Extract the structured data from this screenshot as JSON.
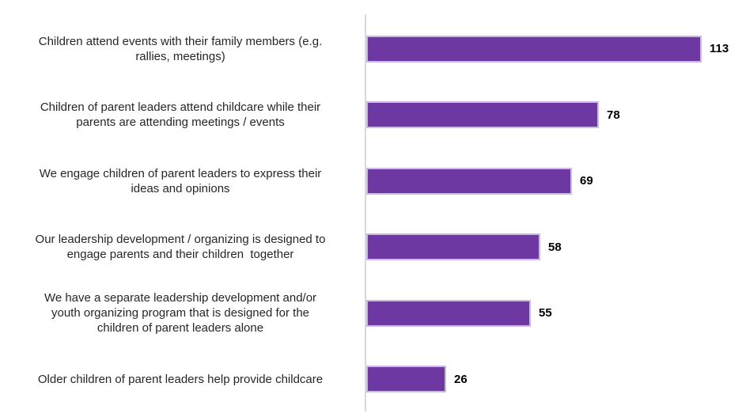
{
  "chart_data": {
    "type": "bar",
    "orientation": "horizontal",
    "title": "",
    "xlabel": "",
    "ylabel": "",
    "categories": [
      "Children attend events with their family members (e.g. rallies, meetings)",
      "Children of parent leaders attend childcare while their parents are attending meetings / events",
      "We engage children of parent leaders to express their ideas and opinions",
      "Our leadership development / organizing is designed to engage parents and their children  together",
      "We have a separate leadership development and/or youth organizing program that is designed for the children of parent leaders alone",
      "Older children of parent leaders help provide childcare"
    ],
    "values": [
      113,
      78,
      69,
      58,
      55,
      26
    ],
    "value_labels": [
      "113",
      "78",
      "69",
      "58",
      "55",
      "26"
    ],
    "label_lines": [
      [
        "Children attend events with their family members (e.g.",
        "rallies, meetings)"
      ],
      [
        "Children of parent leaders attend childcare while their",
        "parents are attending meetings / events"
      ],
      [
        "We engage children of parent leaders to express their",
        "ideas and opinions"
      ],
      [
        "Our leadership development / organizing is designed to",
        "engage parents and their children  together"
      ],
      [
        "We have a separate leadership development and/or",
        "youth organizing program that is designed for the",
        "children of parent leaders alone"
      ],
      [
        "Older children of parent leaders help provide childcare"
      ]
    ],
    "xlim": [
      0,
      120
    ],
    "grid": false,
    "legend": false,
    "bar_color": "#6d38a2",
    "bar_border_color": "#cbb8e8",
    "axis_line_color": "#d9d9d9",
    "category_label_color": "#262626",
    "value_label_color": "#000000"
  }
}
